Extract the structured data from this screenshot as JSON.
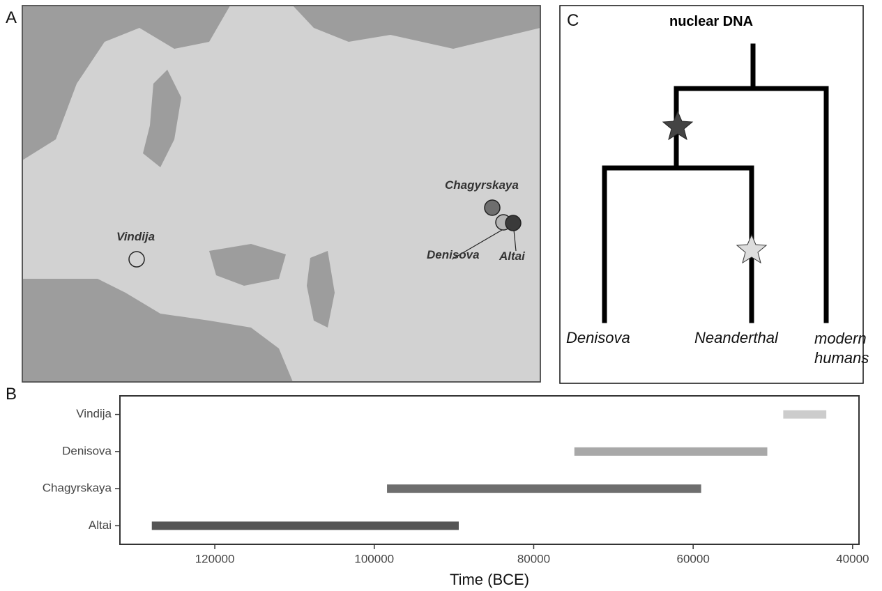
{
  "panel_labels": {
    "a": "A",
    "b": "B",
    "c": "C"
  },
  "map": {
    "sites": [
      {
        "name": "Vindija",
        "color": "#d4d4d4"
      },
      {
        "name": "Chagyrskaya",
        "color": "#6e6e6e"
      },
      {
        "name": "Denisova",
        "color": "#b4b4b4"
      },
      {
        "name": "Altai",
        "color": "#3a3a3a"
      }
    ]
  },
  "tree": {
    "title": "nuclear DNA",
    "leaves": [
      "Denisova",
      "Neanderthal",
      "modern humans"
    ]
  },
  "chart_data": {
    "type": "range",
    "xlabel": "Time (BCE)",
    "categories": [
      "Vindija",
      "Denisova",
      "Chagyrskaya",
      "Altai"
    ],
    "start": [
      48700,
      74900,
      98400,
      127900
    ],
    "end": [
      43300,
      50700,
      59000,
      89400
    ],
    "colors": [
      "#cccccc",
      "#a8a8a8",
      "#6e6e6e",
      "#555555"
    ],
    "xlim": [
      131900,
      39200
    ],
    "xticks": [
      120000,
      100000,
      80000,
      60000,
      40000
    ]
  }
}
